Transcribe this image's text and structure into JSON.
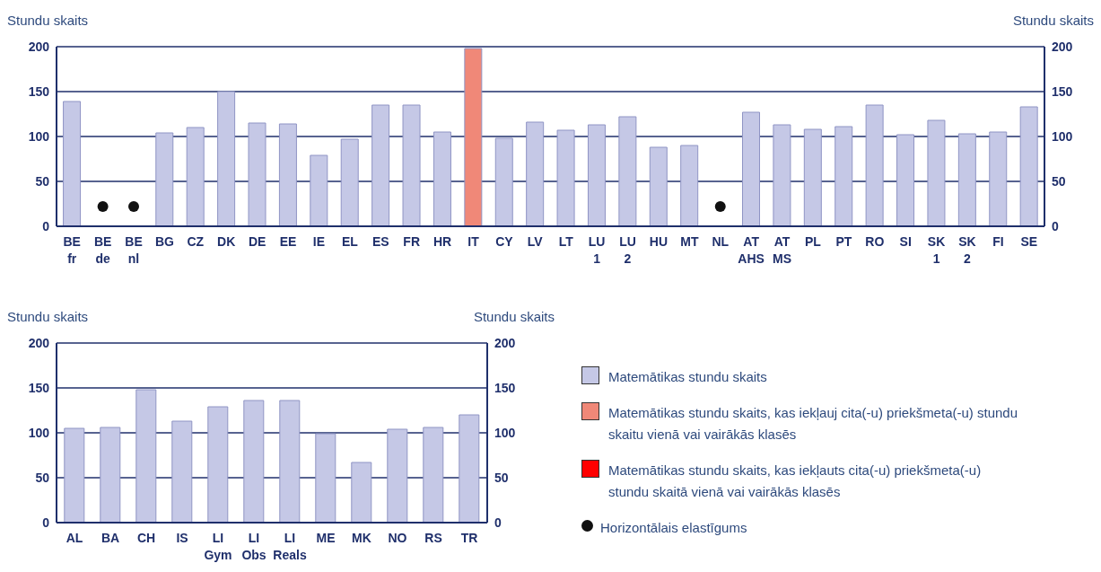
{
  "chart_data": [
    {
      "type": "bar",
      "ylabel": "Stundu skaits",
      "y2label": "Stundu skaits",
      "categories": [
        "BE\nfr",
        "BE\nde",
        "BE\nnl",
        "BG",
        "CZ",
        "DK",
        "DE",
        "EE",
        "IE",
        "EL",
        "ES",
        "FR",
        "HR",
        "IT",
        "CY",
        "LV",
        "LT",
        "LU\n1",
        "LU\n2",
        "HU",
        "MT",
        "NL",
        "AT\nAHS",
        "AT\nMS",
        "PL",
        "PT",
        "RO",
        "SI",
        "SK\n1",
        "SK\n2",
        "FI",
        "SE"
      ],
      "stacked": true,
      "series": [
        {
          "name": "Matemātikas stundu skaits",
          "color": "#c5c8e6",
          "values": [
            139,
            null,
            null,
            104,
            110,
            150,
            115,
            114,
            79,
            97,
            135,
            135,
            105,
            null,
            98,
            116,
            107,
            113,
            122,
            88,
            90,
            null,
            127,
            113,
            108,
            111,
            135,
            102,
            118,
            103,
            105,
            133
          ]
        },
        {
          "name": "Matemātikas stundu skaits, kas iekļauj cita(-u) priekšmeta(-u) stundu skaitu vienā vai vairākās klasēs",
          "color": "#f08878",
          "values": [
            null,
            null,
            null,
            null,
            null,
            null,
            null,
            null,
            null,
            null,
            null,
            null,
            null,
            198,
            null,
            null,
            null,
            null,
            null,
            null,
            null,
            null,
            null,
            null,
            null,
            null,
            null,
            null,
            null,
            null,
            null,
            null
          ]
        },
        {
          "name": "Matemātikas stundu skaits, kas iekļauts cita(-u) priekšmeta(-u) stundu skaitā vienā vai vairākās klasēs",
          "color": "#ff0000",
          "values": [
            null,
            null,
            null,
            null,
            null,
            null,
            null,
            null,
            null,
            null,
            null,
            null,
            null,
            null,
            null,
            null,
            null,
            null,
            null,
            null,
            null,
            null,
            null,
            null,
            null,
            null,
            null,
            null,
            null,
            null,
            null,
            null
          ]
        },
        {
          "name": "Horizontālais elastīgums",
          "type": "scatter",
          "color": "#111111",
          "x": [
            "BE\nde",
            "BE\nnl",
            "NL"
          ],
          "values": [
            22,
            22,
            22
          ]
        }
      ],
      "ylim": [
        0,
        200
      ],
      "yticks": [
        0,
        50,
        100,
        150,
        200
      ],
      "y2lim": [
        0,
        200
      ],
      "y2ticks": [
        0,
        50,
        100,
        150,
        200
      ],
      "grid": "y",
      "marker": "circle",
      "legend": "bottom right"
    },
    {
      "type": "bar",
      "ylabel": "Stundu skaits",
      "y2label": "Stundu skaits",
      "categories": [
        "AL",
        "BA",
        "CH",
        "IS",
        "LI\nGym",
        "LI\nObs",
        "LI\nReals",
        "ME",
        "MK",
        "NO",
        "RS",
        "TR"
      ],
      "series": [
        {
          "color": "#c5c8e6",
          "values": [
            105,
            106,
            148,
            113,
            129,
            136,
            136,
            99,
            67,
            104,
            106,
            120
          ]
        }
      ],
      "ylim": [
        0,
        200
      ],
      "yticks": [
        0,
        50,
        100,
        150,
        200
      ],
      "y2lim": [
        0,
        200
      ],
      "y2ticks": [
        0,
        50,
        100,
        150,
        200
      ],
      "grid": "y"
    }
  ]
}
